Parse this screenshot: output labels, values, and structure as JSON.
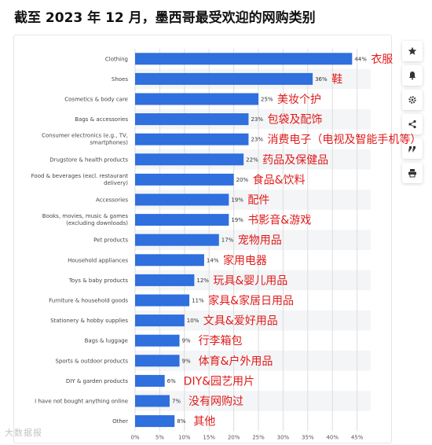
{
  "title": "截至 2023 年 12 月，墨西哥最受欢迎的网购类别",
  "sidebar": {
    "icons": [
      "star-icon",
      "bell-icon",
      "gear-icon",
      "share-icon",
      "quote-icon",
      "print-icon"
    ]
  },
  "watermark": "大数据报",
  "colors": {
    "bar": "#2f6fde",
    "annotation": "#e01b1b",
    "band": "#f4f5f7",
    "grid": "#dddddd"
  },
  "chart_data": {
    "type": "bar",
    "orientation": "horizontal",
    "categories": [
      "Clothing",
      "Shoes",
      "Cosmetics & body care",
      "Bags & accessories",
      "Consumer electronics (e.g., TV,\nsmartphones)",
      "Drugstore & health products",
      "Food & beverages (excl. restaurant\ndelivery)",
      "Accessories",
      "Books, movies, music & games\n(excluding downloads)",
      "Pet products",
      "Household appliances",
      "Toys & baby products",
      "Furniture & household goods",
      "Stationery & hobby supplies",
      "Bags & luggage",
      "Sports & outdoor products",
      "DIY & garden products",
      "I have not bought anything online",
      "Other"
    ],
    "values": [
      44,
      36,
      25,
      23,
      23,
      22,
      20,
      19,
      19,
      17,
      14,
      12,
      11,
      10,
      9,
      9,
      6,
      7,
      8
    ],
    "value_labels": [
      "44%",
      "36%",
      "25%",
      "23%",
      "23%",
      "22%",
      "20%",
      "19%",
      "19%",
      "17%",
      "14%",
      "12%",
      "11%",
      "10%",
      "9%",
      "9%",
      "6%",
      "7%",
      "8%"
    ],
    "annotations": [
      "衣服",
      "鞋",
      "美妆个护",
      "包袋及配饰",
      "消费电子（电视及智能手机等）",
      "药品及保健品",
      "食品&饮料",
      "配件",
      "书影音&游戏",
      "宠物用品",
      "家用电器",
      "玩具&婴儿用品",
      "家具&家居日用品",
      "文具&爱好用品",
      "行李箱包",
      "体育&户外用品",
      "DIY&园艺用片",
      "没有网购过",
      "其他"
    ],
    "xticks": [
      "0%",
      "5%",
      "10%",
      "15%",
      "20%",
      "25%",
      "30%",
      "35%",
      "40%",
      "45%"
    ],
    "xlim": [
      0,
      45
    ],
    "grid": true
  }
}
